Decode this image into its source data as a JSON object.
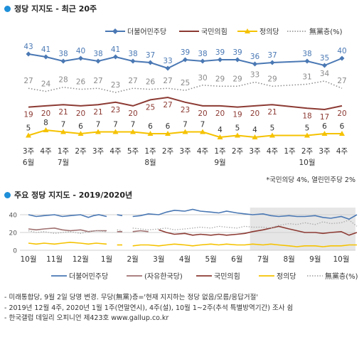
{
  "colors": {
    "dem": "#4a78b4",
    "ppp": "#8c3a33",
    "justice": "#f5c200",
    "none": "#8a8a8a",
    "liberty": "#a07070",
    "accent": "#1e8fd8"
  },
  "chart_data": [
    {
      "type": "line",
      "title": "정당 지지도 - 최근 20주",
      "x_labels": [
        [
          "3주",
          "6월"
        ],
        [
          "4주",
          ""
        ],
        [
          "1주",
          "7월"
        ],
        [
          "2주",
          ""
        ],
        [
          "3주",
          ""
        ],
        [
          "4주",
          ""
        ],
        [
          "5주",
          ""
        ],
        [
          "1주",
          "8월"
        ],
        [
          "2주",
          ""
        ],
        [
          "3주",
          ""
        ],
        [
          "4주",
          ""
        ],
        [
          "1주",
          "9월"
        ],
        [
          "2주",
          ""
        ],
        [
          "3주",
          ""
        ],
        [
          "4주",
          ""
        ],
        [
          "1주",
          ""
        ],
        [
          "2주",
          "10월"
        ],
        [
          "3주",
          ""
        ],
        [
          "4주",
          ""
        ]
      ],
      "x_positions": [
        0,
        1,
        2,
        3,
        4,
        5,
        6,
        7,
        8,
        9,
        10,
        11,
        12,
        13,
        14,
        15,
        16,
        17,
        18
      ],
      "series": [
        {
          "name": "더불어민주당",
          "style": "line-diamond",
          "color": "#4a78b4",
          "x": [
            0,
            1,
            2,
            3,
            4,
            5,
            6,
            7,
            8,
            9,
            10,
            11,
            12,
            13,
            14,
            16,
            17,
            18
          ],
          "values": [
            43,
            41,
            38,
            40,
            38,
            41,
            38,
            37,
            33,
            39,
            38,
            39,
            39,
            36,
            37,
            38,
            35,
            40
          ]
        },
        {
          "name": "국민의힘",
          "style": "line",
          "color": "#8c3a33",
          "x": [
            0,
            1,
            2,
            3,
            4,
            5,
            6,
            7,
            8,
            9,
            10,
            11,
            12,
            13,
            14,
            16,
            17,
            18
          ],
          "values": [
            19,
            20,
            21,
            20,
            21,
            23,
            20,
            25,
            27,
            23,
            20,
            20,
            19,
            20,
            21,
            18,
            17,
            20
          ]
        },
        {
          "name": "정의당",
          "style": "line-triangle",
          "color": "#f5c200",
          "x": [
            0,
            1,
            2,
            3,
            4,
            5,
            6,
            7,
            8,
            9,
            10,
            11,
            12,
            13,
            14,
            16,
            17,
            18
          ],
          "values": [
            5,
            8,
            7,
            6,
            7,
            7,
            7,
            6,
            6,
            7,
            7,
            4,
            5,
            4,
            5,
            5,
            6,
            6
          ]
        },
        {
          "name": "無黨층(%)",
          "style": "dotted",
          "color": "#8a8a8a",
          "x": [
            0,
            1,
            2,
            3,
            4,
            5,
            6,
            7,
            8,
            9,
            10,
            11,
            12,
            13,
            14,
            16,
            17,
            18
          ],
          "values": [
            27,
            24,
            28,
            26,
            27,
            23,
            27,
            26,
            27,
            25,
            30,
            29,
            29,
            33,
            29,
            31,
            34,
            27
          ]
        }
      ],
      "legend": [
        "더불어민주당",
        "국민의힘",
        "정의당",
        "無黨층(%)"
      ],
      "legend_position": "top-right",
      "footnote": "*국민의당 4%, 열린민주당 2%"
    },
    {
      "type": "line",
      "title": "주요 정당 지지도 - 2019/2020년",
      "y_ticks": [
        0,
        20,
        40
      ],
      "ylim": [
        0,
        48
      ],
      "x_ticks": [
        "10월",
        "11월",
        "12월",
        "1월",
        "2월",
        "3월",
        "4월",
        "5월",
        "6월",
        "7월",
        "8월",
        "9월",
        "10월"
      ],
      "shaded_region": [
        "7월",
        "10월"
      ],
      "grid": true,
      "series": [
        {
          "name": "더불어민주당",
          "color": "#4a78b4",
          "segments": [
            [
              [
                0,
                40
              ],
              [
                0.3,
                38
              ],
              [
                0.6,
                39
              ],
              [
                1,
                40
              ],
              [
                1.3,
                38
              ],
              [
                1.6,
                39
              ],
              [
                2,
                40
              ],
              [
                2.3,
                37
              ],
              [
                2.5,
                39
              ],
              [
                2.7,
                40
              ],
              [
                3,
                38
              ]
            ],
            [
              [
                3.4,
                40
              ],
              [
                3.6,
                39
              ]
            ],
            [
              [
                4,
                38
              ],
              [
                4.3,
                39
              ],
              [
                4.6,
                41
              ],
              [
                5,
                40
              ],
              [
                5.3,
                43
              ],
              [
                5.6,
                45
              ],
              [
                6,
                44
              ],
              [
                6.3,
                46
              ],
              [
                6.6,
                44
              ],
              [
                7,
                43
              ],
              [
                7.3,
                42
              ],
              [
                7.6,
                44
              ],
              [
                8,
                42
              ],
              [
                8.3,
                41
              ],
              [
                8.6,
                40
              ],
              [
                9,
                41
              ],
              [
                9.3,
                39
              ],
              [
                9.6,
                38
              ],
              [
                10,
                39
              ],
              [
                10.3,
                38
              ],
              [
                10.6,
                38
              ],
              [
                11,
                39
              ],
              [
                11.3,
                37
              ],
              [
                11.6,
                36
              ],
              [
                12,
                38
              ],
              [
                12.3,
                35
              ],
              [
                12.6,
                40
              ]
            ]
          ]
        },
        {
          "name": "(자유한국당)",
          "color": "#a07070",
          "segments": [
            [
              [
                0,
                24
              ],
              [
                0.3,
                23
              ],
              [
                0.6,
                24
              ],
              [
                1,
                25
              ],
              [
                1.3,
                23
              ],
              [
                1.6,
                22
              ],
              [
                2,
                23
              ],
              [
                2.3,
                21
              ],
              [
                2.6,
                22
              ],
              [
                3,
                22
              ]
            ],
            [
              [
                3.4,
                21
              ],
              [
                3.6,
                21
              ]
            ],
            [
              [
                4,
                21
              ],
              [
                4.3,
                22
              ],
              [
                4.6,
                21
              ]
            ]
          ]
        },
        {
          "name": "국민의힘",
          "color": "#8c3a33",
          "segments": [
            [
              [
                5,
                23
              ],
              [
                5.3,
                20
              ],
              [
                5.6,
                18
              ],
              [
                6,
                19
              ],
              [
                6.3,
                17
              ],
              [
                6.6,
                18
              ],
              [
                7,
                17
              ],
              [
                7.3,
                18
              ],
              [
                7.6,
                17
              ],
              [
                8,
                18
              ],
              [
                8.3,
                19
              ],
              [
                8.6,
                21
              ],
              [
                9,
                23
              ],
              [
                9.3,
                25
              ],
              [
                9.6,
                27
              ],
              [
                10,
                24
              ],
              [
                10.3,
                22
              ],
              [
                10.6,
                20
              ],
              [
                11,
                20
              ],
              [
                11.3,
                19
              ],
              [
                11.6,
                20
              ],
              [
                12,
                21
              ],
              [
                12.3,
                17
              ],
              [
                12.6,
                20
              ]
            ]
          ]
        },
        {
          "name": "정의당",
          "color": "#f5c200",
          "segments": [
            [
              [
                0,
                8
              ],
              [
                0.3,
                7
              ],
              [
                0.6,
                8
              ],
              [
                1,
                7
              ],
              [
                1.3,
                8
              ],
              [
                1.6,
                9
              ],
              [
                2,
                8
              ],
              [
                2.3,
                7
              ],
              [
                2.6,
                8
              ],
              [
                3,
                7
              ]
            ],
            [
              [
                3.4,
                6
              ],
              [
                3.6,
                6
              ]
            ],
            [
              [
                4,
                5
              ],
              [
                4.3,
                6
              ],
              [
                4.6,
                6
              ],
              [
                5,
                5
              ],
              [
                5.3,
                6
              ],
              [
                5.6,
                7
              ],
              [
                6,
                6
              ],
              [
                6.3,
                5
              ],
              [
                6.6,
                6
              ],
              [
                7,
                7
              ],
              [
                7.3,
                6
              ],
              [
                7.6,
                7
              ],
              [
                8,
                6
              ],
              [
                8.3,
                6
              ],
              [
                8.6,
                7
              ],
              [
                9,
                6
              ],
              [
                9.3,
                7
              ],
              [
                9.6,
                6
              ],
              [
                10,
                5
              ],
              [
                10.3,
                4
              ],
              [
                10.6,
                5
              ],
              [
                11,
                5
              ],
              [
                11.3,
                4
              ],
              [
                11.6,
                5
              ],
              [
                12,
                5
              ],
              [
                12.3,
                6
              ],
              [
                12.6,
                6
              ]
            ]
          ]
        },
        {
          "name": "無黨층(%)",
          "color": "#aaaaaa",
          "dotted": true,
          "segments": [
            [
              [
                0,
                22
              ],
              [
                0.3,
                20
              ],
              [
                0.6,
                21
              ],
              [
                1,
                19
              ],
              [
                1.3,
                20
              ],
              [
                1.6,
                21
              ],
              [
                2,
                19
              ],
              [
                2.3,
                21
              ],
              [
                2.6,
                22
              ],
              [
                3,
                21
              ]
            ],
            [
              [
                3.4,
                23
              ],
              [
                3.6,
                22
              ]
            ],
            [
              [
                4,
                25
              ],
              [
                4.3,
                24
              ],
              [
                4.6,
                23
              ],
              [
                5,
                24
              ],
              [
                5.3,
                25
              ],
              [
                5.6,
                23
              ],
              [
                6,
                24
              ],
              [
                6.3,
                25
              ],
              [
                6.6,
                26
              ],
              [
                7,
                25
              ],
              [
                7.3,
                27
              ],
              [
                7.6,
                26
              ],
              [
                8,
                25
              ],
              [
                8.3,
                27
              ],
              [
                8.6,
                26
              ],
              [
                9,
                26
              ],
              [
                9.3,
                25
              ],
              [
                9.6,
                28
              ],
              [
                10,
                30
              ],
              [
                10.3,
                29
              ],
              [
                10.6,
                31
              ],
              [
                11,
                29
              ],
              [
                11.3,
                32
              ],
              [
                11.6,
                30
              ],
              [
                12,
                31
              ],
              [
                12.3,
                34
              ],
              [
                12.6,
                27
              ]
            ]
          ]
        }
      ],
      "legend": [
        "더불어민주당",
        "(자유한국당)",
        "국민의힘",
        "정의당",
        "無黨층(%)"
      ],
      "legend_position": "bottom"
    }
  ],
  "notes": [
    "- 미래통합당, 9월 2일 당명 변경. 무당(無黨)층='현재 지지하는 정당 없음/모름/응답거절'",
    "- 2019년 12월 4주, 2020년 1월 1주(연말연시), 4주(설), 10월 1~2주(추석 특별방역기간) 조사 쉼",
    "- 한국갤럽 데일리 오피니언 제423호 www.gallup.co.kr"
  ]
}
